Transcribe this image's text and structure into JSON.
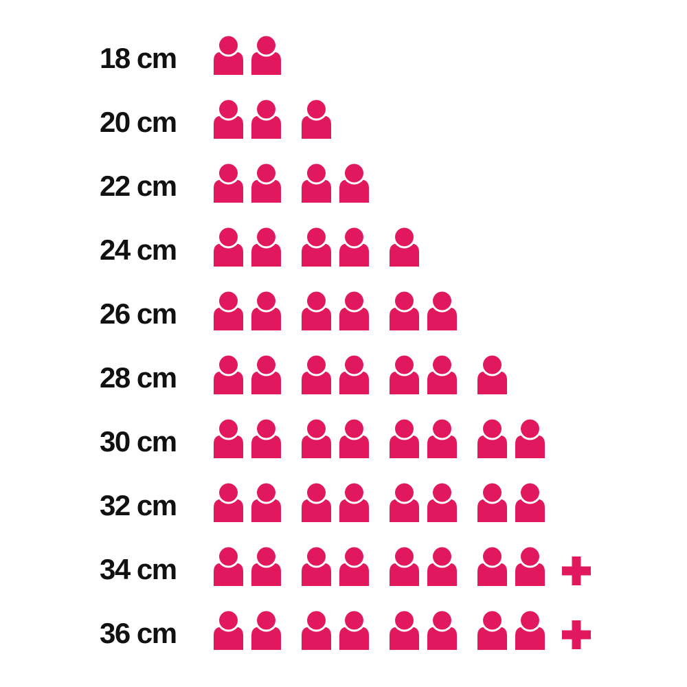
{
  "chart": {
    "background_color": "#ffffff",
    "label_color": "#111111",
    "icon_color": "#E2185E"
  },
  "chart_data": {
    "type": "pictogram",
    "title": "",
    "xlabel": "",
    "ylabel": "",
    "unit_icon": "person-icon",
    "icon_color": "#E2185E",
    "group_size": 2,
    "overflow_symbol": "+",
    "categories": [
      "18 cm",
      "20 cm",
      "22 cm",
      "24 cm",
      "26 cm",
      "28 cm",
      "30 cm",
      "32 cm",
      "34 cm",
      "36 cm"
    ],
    "values": [
      2,
      3,
      4,
      5,
      6,
      7,
      8,
      8,
      8,
      8
    ],
    "overflow_plus": [
      false,
      false,
      false,
      false,
      false,
      false,
      false,
      false,
      true,
      true
    ],
    "rows": [
      {
        "label": "18 cm",
        "count": 2,
        "plus": false
      },
      {
        "label": "20 cm",
        "count": 3,
        "plus": false
      },
      {
        "label": "22 cm",
        "count": 4,
        "plus": false
      },
      {
        "label": "24 cm",
        "count": 5,
        "plus": false
      },
      {
        "label": "26 cm",
        "count": 6,
        "plus": false
      },
      {
        "label": "28 cm",
        "count": 7,
        "plus": false
      },
      {
        "label": "30 cm",
        "count": 8,
        "plus": false
      },
      {
        "label": "32 cm",
        "count": 8,
        "plus": false
      },
      {
        "label": "34 cm",
        "count": 8,
        "plus": true
      },
      {
        "label": "36 cm",
        "count": 8,
        "plus": true
      }
    ]
  }
}
